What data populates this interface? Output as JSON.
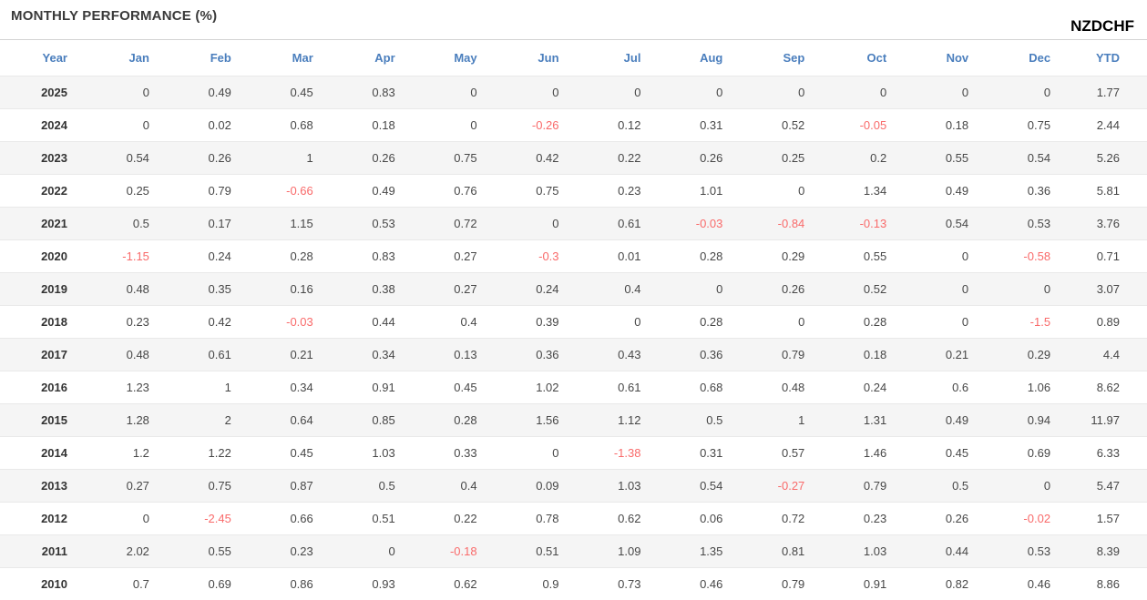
{
  "widget": {
    "title": "MONTHLY PERFORMANCE (%)",
    "symbol": "NZDCHF"
  },
  "colors": {
    "header_text": "#4a7ebd",
    "negative": "#f96a6a",
    "value_text": "#474747",
    "year_text": "#333333",
    "stripe": "#f5f5f5",
    "title_text": "#3a3a3a",
    "divider": "#d4d4d4",
    "row_border": "#e9e9e9"
  },
  "chart_data": {
    "type": "table",
    "title": "MONTHLY PERFORMANCE (%)",
    "symbol": "NZDCHF",
    "units": "percent",
    "columns": [
      "Year",
      "Jan",
      "Feb",
      "Mar",
      "Apr",
      "May",
      "Jun",
      "Jul",
      "Aug",
      "Sep",
      "Oct",
      "Nov",
      "Dec",
      "YTD"
    ],
    "rows": [
      {
        "year": "2025",
        "values": [
          "0",
          "0.49",
          "0.45",
          "0.83",
          "0",
          "0",
          "0",
          "0",
          "0",
          "0",
          "0",
          "0",
          "1.77"
        ]
      },
      {
        "year": "2024",
        "values": [
          "0",
          "0.02",
          "0.68",
          "0.18",
          "0",
          "-0.26",
          "0.12",
          "0.31",
          "0.52",
          "-0.05",
          "0.18",
          "0.75",
          "2.44"
        ]
      },
      {
        "year": "2023",
        "values": [
          "0.54",
          "0.26",
          "1",
          "0.26",
          "0.75",
          "0.42",
          "0.22",
          "0.26",
          "0.25",
          "0.2",
          "0.55",
          "0.54",
          "5.26"
        ]
      },
      {
        "year": "2022",
        "values": [
          "0.25",
          "0.79",
          "-0.66",
          "0.49",
          "0.76",
          "0.75",
          "0.23",
          "1.01",
          "0",
          "1.34",
          "0.49",
          "0.36",
          "5.81"
        ]
      },
      {
        "year": "2021",
        "values": [
          "0.5",
          "0.17",
          "1.15",
          "0.53",
          "0.72",
          "0",
          "0.61",
          "-0.03",
          "-0.84",
          "-0.13",
          "0.54",
          "0.53",
          "3.76"
        ]
      },
      {
        "year": "2020",
        "values": [
          "-1.15",
          "0.24",
          "0.28",
          "0.83",
          "0.27",
          "-0.3",
          "0.01",
          "0.28",
          "0.29",
          "0.55",
          "0",
          "-0.58",
          "0.71"
        ]
      },
      {
        "year": "2019",
        "values": [
          "0.48",
          "0.35",
          "0.16",
          "0.38",
          "0.27",
          "0.24",
          "0.4",
          "0",
          "0.26",
          "0.52",
          "0",
          "0",
          "3.07"
        ]
      },
      {
        "year": "2018",
        "values": [
          "0.23",
          "0.42",
          "-0.03",
          "0.44",
          "0.4",
          "0.39",
          "0",
          "0.28",
          "0",
          "0.28",
          "0",
          "-1.5",
          "0.89"
        ]
      },
      {
        "year": "2017",
        "values": [
          "0.48",
          "0.61",
          "0.21",
          "0.34",
          "0.13",
          "0.36",
          "0.43",
          "0.36",
          "0.79",
          "0.18",
          "0.21",
          "0.29",
          "4.4"
        ]
      },
      {
        "year": "2016",
        "values": [
          "1.23",
          "1",
          "0.34",
          "0.91",
          "0.45",
          "1.02",
          "0.61",
          "0.68",
          "0.48",
          "0.24",
          "0.6",
          "1.06",
          "8.62"
        ]
      },
      {
        "year": "2015",
        "values": [
          "1.28",
          "2",
          "0.64",
          "0.85",
          "0.28",
          "1.56",
          "1.12",
          "0.5",
          "1",
          "1.31",
          "0.49",
          "0.94",
          "11.97"
        ]
      },
      {
        "year": "2014",
        "values": [
          "1.2",
          "1.22",
          "0.45",
          "1.03",
          "0.33",
          "0",
          "-1.38",
          "0.31",
          "0.57",
          "1.46",
          "0.45",
          "0.69",
          "6.33"
        ]
      },
      {
        "year": "2013",
        "values": [
          "0.27",
          "0.75",
          "0.87",
          "0.5",
          "0.4",
          "0.09",
          "1.03",
          "0.54",
          "-0.27",
          "0.79",
          "0.5",
          "0",
          "5.47"
        ]
      },
      {
        "year": "2012",
        "values": [
          "0",
          "-2.45",
          "0.66",
          "0.51",
          "0.22",
          "0.78",
          "0.62",
          "0.06",
          "0.72",
          "0.23",
          "0.26",
          "-0.02",
          "1.57"
        ]
      },
      {
        "year": "2011",
        "values": [
          "2.02",
          "0.55",
          "0.23",
          "0",
          "-0.18",
          "0.51",
          "1.09",
          "1.35",
          "0.81",
          "1.03",
          "0.44",
          "0.53",
          "8.39"
        ]
      },
      {
        "year": "2010",
        "values": [
          "0.7",
          "0.69",
          "0.86",
          "0.93",
          "0.62",
          "0.9",
          "0.73",
          "0.46",
          "0.79",
          "0.91",
          "0.82",
          "0.46",
          "8.86"
        ]
      }
    ]
  }
}
